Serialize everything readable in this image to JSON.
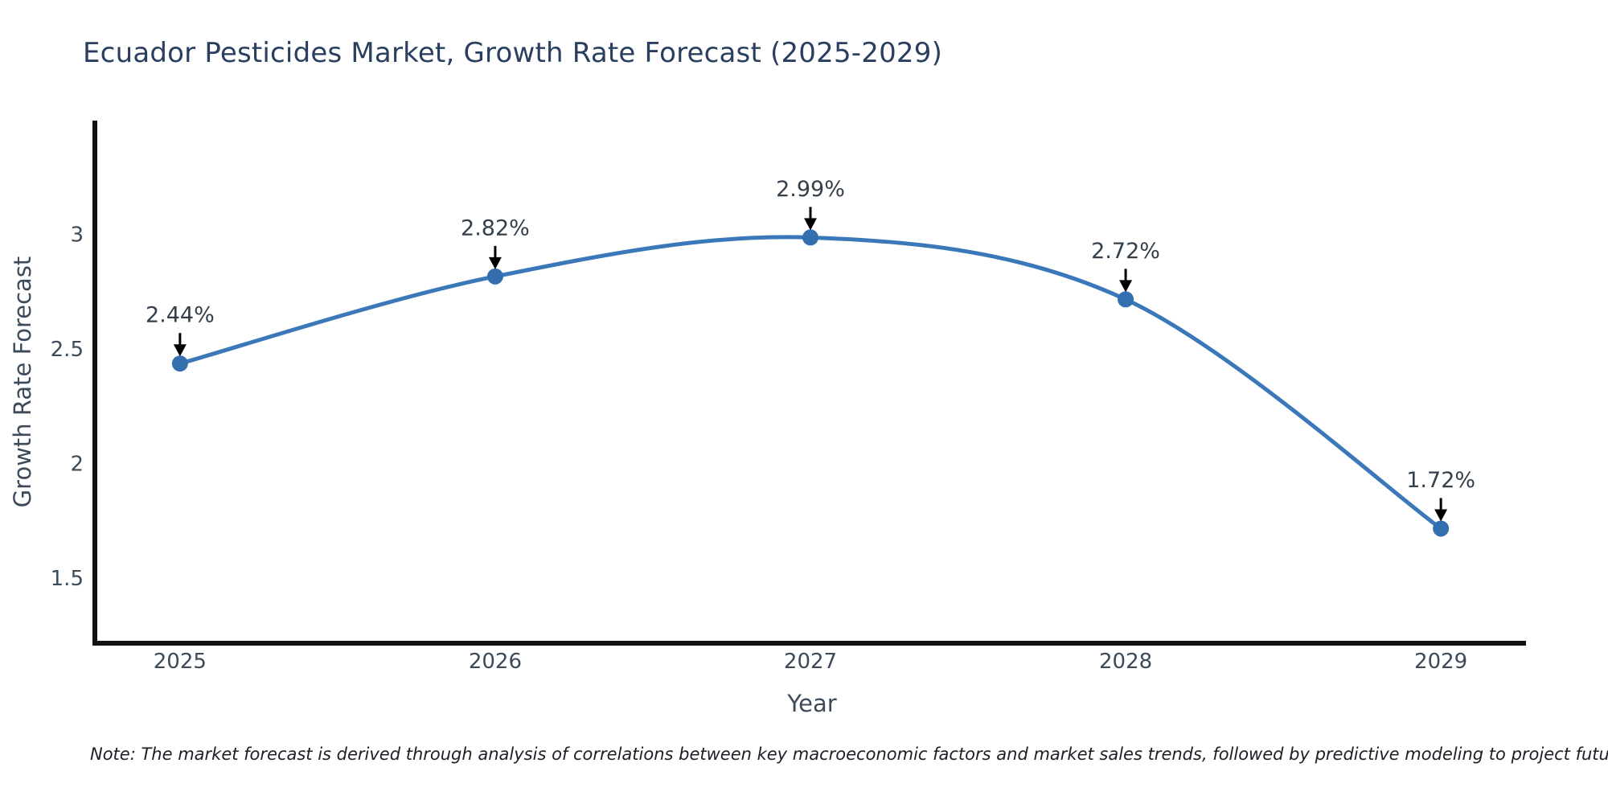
{
  "chart_data": {
    "type": "line",
    "line_shape": "spline",
    "title": "Ecuador Pesticides Market, Growth Rate Forecast (2025-2029)",
    "xlabel": "Year",
    "ylabel": "Growth Rate Forecast",
    "x": [
      2025,
      2026,
      2027,
      2028,
      2029
    ],
    "values": [
      2.44,
      2.82,
      2.99,
      2.72,
      1.72
    ],
    "point_labels": [
      "2.44%",
      "2.82%",
      "2.99%",
      "2.72%",
      "1.72%"
    ],
    "x_tick_labels": [
      "2025",
      "2026",
      "2027",
      "2028",
      "2029"
    ],
    "y_ticks": [
      1.5,
      2,
      2.5,
      3
    ],
    "y_tick_labels": [
      "1.5",
      "2",
      "2.5",
      "3"
    ],
    "x_range": [
      2024.73,
      2029.27
    ],
    "y_range": [
      1.22,
      3.5
    ],
    "grid": false,
    "legend": "none",
    "marker_radius": 10,
    "line_width": 5,
    "colors": {
      "line": "#3a78ba",
      "marker": "#336fae",
      "axis": "#111111",
      "title": "#2a3f5f",
      "axis_title": "#3c4a5a",
      "tick": "#3c4a5a",
      "annotation_text": "#333f4b",
      "arrow": "#000000",
      "background": "#ffffff"
    }
  },
  "note": {
    "text": "Note: The market forecast is derived through analysis of correlations between key macroeconomic factors and market sales trends, followed by predictive modeling to project future sales"
  }
}
